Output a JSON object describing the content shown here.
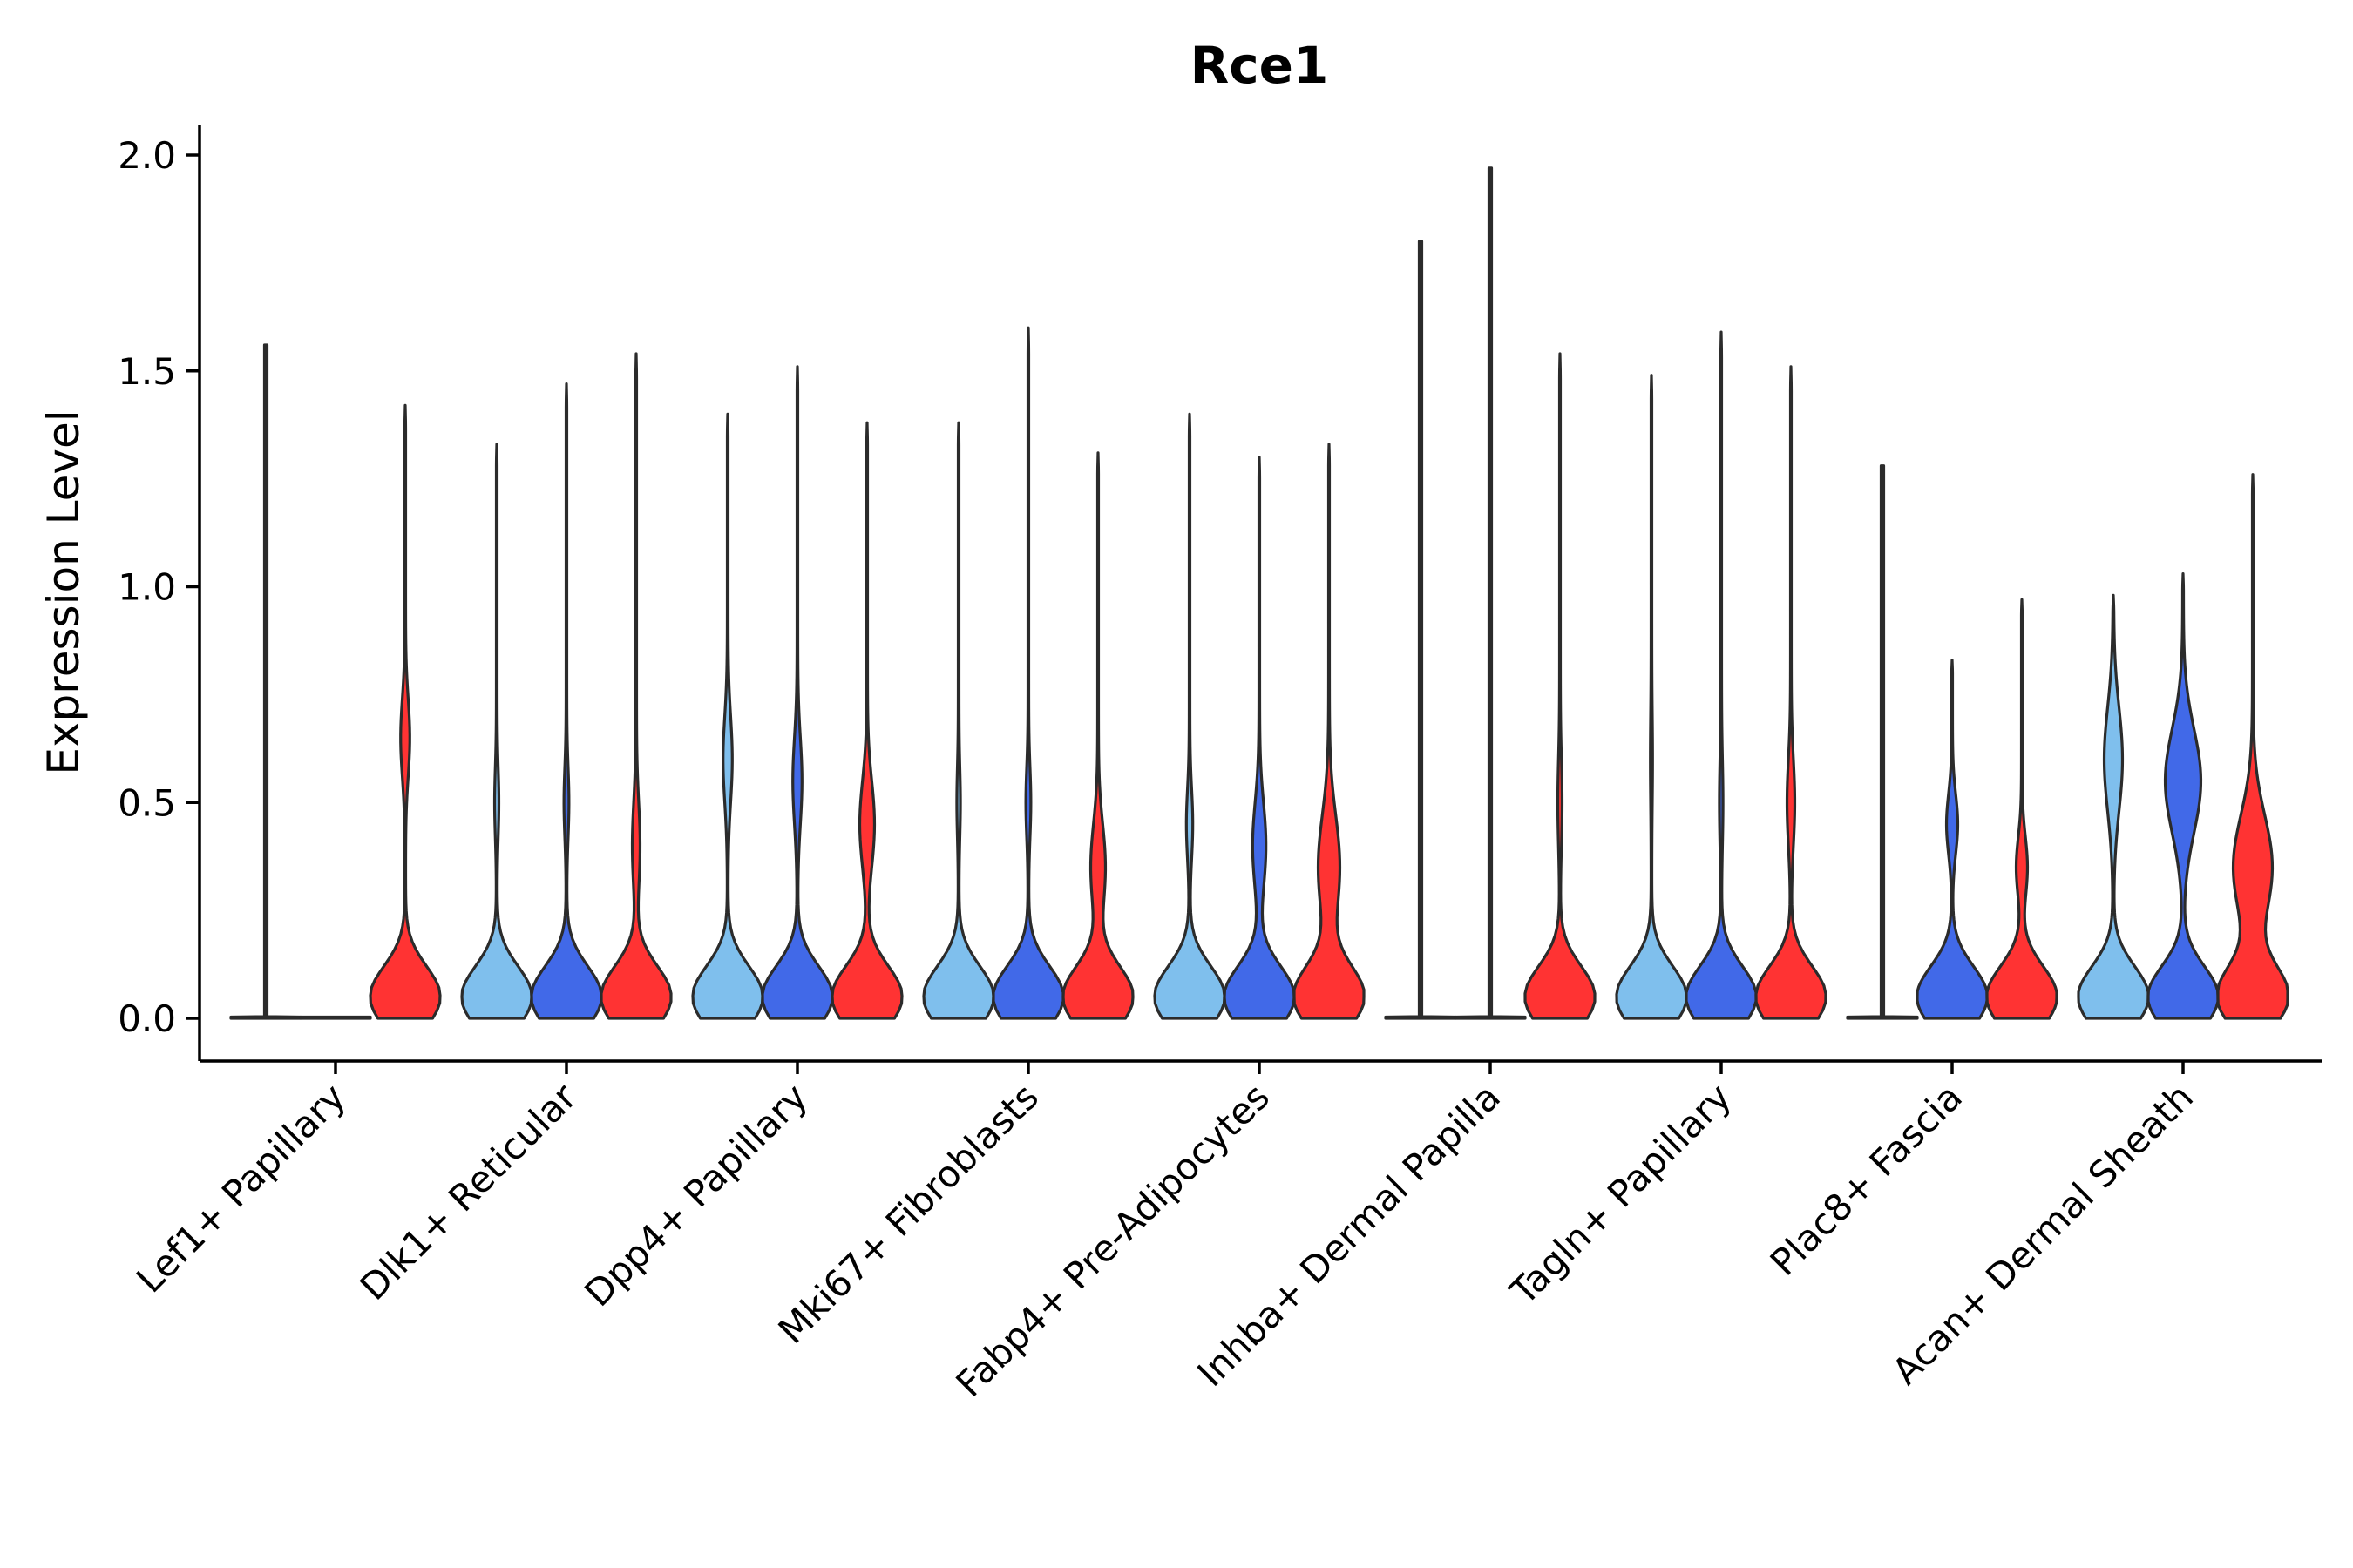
{
  "chart_data": {
    "type": "violin",
    "title": "Rce1",
    "xlabel": "",
    "ylabel": "Expression Level",
    "ylim": [
      -0.1,
      2.08
    ],
    "yticks": [
      "0.0",
      "0.5",
      "1.0",
      "1.5",
      "2.0"
    ],
    "ytick_values": [
      0.0,
      0.5,
      1.0,
      1.5,
      2.0
    ],
    "grid": false,
    "legend": "none",
    "series_colors": [
      "#7fbfed",
      "#4169e8",
      "#ff3333"
    ],
    "categories": [
      {
        "label": "Lef1+ Papillary",
        "violins": [
          {
            "max": 1.56,
            "peak": 0.0,
            "w": 1.0,
            "flat": true
          },
          {
            "max": 0.0,
            "peak": 0.0,
            "w": 0.0,
            "flat": true
          },
          {
            "max": 1.42,
            "peak": 0.05,
            "w": 1.0,
            "mode2": 0.65,
            "w2": 0.12,
            "s2": 0.09
          }
        ]
      },
      {
        "label": "Dlk1+ Reticular",
        "violins": [
          {
            "max": 1.33,
            "peak": 0.05,
            "w": 1.0,
            "mode2": 0.5,
            "w2": 0.05,
            "s2": 0.08
          },
          {
            "max": 1.47,
            "peak": 0.05,
            "w": 1.0,
            "mode2": 0.5,
            "w2": 0.06,
            "s2": 0.08
          },
          {
            "max": 1.54,
            "peak": 0.05,
            "w": 1.0,
            "mode2": 0.4,
            "w2": 0.1,
            "s2": 0.1
          }
        ]
      },
      {
        "label": "Dpp4+ Papillary",
        "violins": [
          {
            "max": 1.4,
            "peak": 0.05,
            "w": 1.0,
            "mode2": 0.6,
            "w2": 0.12,
            "s2": 0.1
          },
          {
            "max": 1.51,
            "peak": 0.05,
            "w": 1.0,
            "mode2": 0.55,
            "w2": 0.12,
            "s2": 0.1
          },
          {
            "max": 1.38,
            "peak": 0.05,
            "w": 1.0,
            "mode2": 0.45,
            "w2": 0.2,
            "s2": 0.1
          }
        ]
      },
      {
        "label": "Mki67+ Fibroblasts",
        "violins": [
          {
            "max": 1.38,
            "peak": 0.05,
            "w": 1.0,
            "mode2": 0.5,
            "w2": 0.04,
            "s2": 0.08
          },
          {
            "max": 1.6,
            "peak": 0.05,
            "w": 1.0,
            "mode2": 0.5,
            "w2": 0.06,
            "s2": 0.08
          },
          {
            "max": 1.31,
            "peak": 0.05,
            "w": 1.0,
            "mode2": 0.35,
            "w2": 0.2,
            "s2": 0.1
          }
        ]
      },
      {
        "label": "Fabp4+ Pre-Adipocytes",
        "violins": [
          {
            "max": 1.4,
            "peak": 0.05,
            "w": 1.0,
            "mode2": 0.45,
            "w2": 0.08,
            "s2": 0.08
          },
          {
            "max": 1.3,
            "peak": 0.05,
            "w": 1.0,
            "mode2": 0.4,
            "w2": 0.18,
            "s2": 0.1
          },
          {
            "max": 1.33,
            "peak": 0.05,
            "w": 1.0,
            "mode2": 0.35,
            "w2": 0.3,
            "s2": 0.12
          }
        ]
      },
      {
        "label": "Inhba+ Dermal Papilla",
        "violins": [
          {
            "max": 1.8,
            "peak": 0.0,
            "w": 1.0,
            "flat": true
          },
          {
            "max": 1.97,
            "peak": 0.0,
            "w": 1.0,
            "flat": true
          },
          {
            "max": 1.54,
            "peak": 0.05,
            "w": 1.0,
            "mode2": 0.5,
            "w2": 0.05,
            "s2": 0.1
          }
        ]
      },
      {
        "label": "Tagln+ Papillary",
        "violins": [
          {
            "max": 1.49,
            "peak": 0.05,
            "w": 1.0,
            "mode2": 0.6,
            "w2": 0.02,
            "s2": 0.1
          },
          {
            "max": 1.59,
            "peak": 0.05,
            "w": 1.0,
            "mode2": 0.5,
            "w2": 0.04,
            "s2": 0.1
          },
          {
            "max": 1.51,
            "peak": 0.05,
            "w": 1.0,
            "mode2": 0.5,
            "w2": 0.1,
            "s2": 0.1
          }
        ]
      },
      {
        "label": "Plac8+ Fascia",
        "violins": [
          {
            "max": 1.28,
            "peak": 0.0,
            "w": 1.0,
            "flat": true
          },
          {
            "max": 0.83,
            "peak": 0.05,
            "w": 1.0,
            "mode2": 0.45,
            "w2": 0.15,
            "s2": 0.07
          },
          {
            "max": 0.97,
            "peak": 0.05,
            "w": 1.0,
            "mode2": 0.35,
            "w2": 0.15,
            "s2": 0.07
          }
        ]
      },
      {
        "label": "Acan+ Dermal Sheath",
        "violins": [
          {
            "max": 0.98,
            "peak": 0.05,
            "w": 1.0,
            "mode2": 0.6,
            "w2": 0.25,
            "s2": 0.12
          },
          {
            "max": 1.03,
            "peak": 0.05,
            "w": 1.0,
            "mode2": 0.55,
            "w2": 0.5,
            "s2": 0.12
          },
          {
            "max": 1.26,
            "peak": 0.05,
            "w": 1.0,
            "mode2": 0.35,
            "w2": 0.55,
            "s2": 0.12
          }
        ]
      }
    ]
  }
}
